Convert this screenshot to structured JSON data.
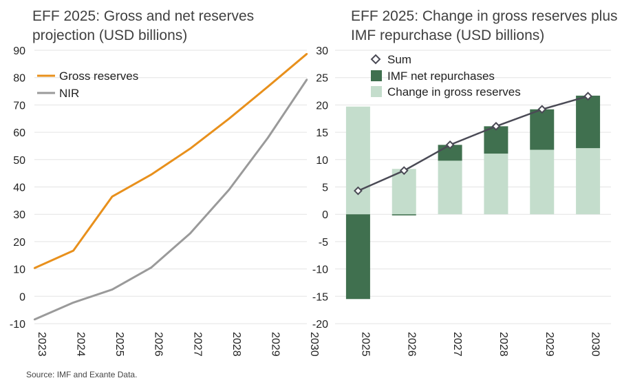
{
  "chart_data": [
    {
      "type": "line",
      "title_lines": [
        "EFF 2025: Gross and net reserves",
        "projection (USD billions)"
      ],
      "x": [
        "2023",
        "2024",
        "2025",
        "2026",
        "2027",
        "2028",
        "2029",
        "2030"
      ],
      "ylim": [
        -10,
        90
      ],
      "yticks": [
        "-10",
        "0",
        "10",
        "20",
        "30",
        "40",
        "50",
        "60",
        "70",
        "80",
        "90"
      ],
      "grid": true,
      "legend_position": "top-left",
      "series": [
        {
          "name": "Gross reserves",
          "color": "#e8901c",
          "values": [
            10.3,
            16.7,
            36.5,
            44.5,
            54.0,
            65.0,
            76.7,
            88.7
          ]
        },
        {
          "name": "NIR",
          "color": "#9a9a9a",
          "values": [
            -8.5,
            -2.3,
            2.5,
            10.5,
            23.0,
            39.0,
            58.0,
            79.3
          ]
        }
      ]
    },
    {
      "type": "bar",
      "stacked": true,
      "title_lines": [
        "EFF 2025: Change in gross reserves plus",
        "IMF repurchase (USD billions)"
      ],
      "categories": [
        "2025",
        "2026",
        "2027",
        "2028",
        "2029",
        "2030"
      ],
      "ylim": [
        -20,
        30
      ],
      "yticks": [
        "-20",
        "-15",
        "-10",
        "-5",
        "0",
        "5",
        "10",
        "15",
        "20",
        "25",
        "30"
      ],
      "grid": true,
      "legend_position": "top-left",
      "series": [
        {
          "name": "Change in gross reserves",
          "color": "#c4ddcc",
          "values": [
            19.7,
            8.3,
            9.8,
            11.1,
            11.8,
            12.1
          ]
        },
        {
          "name": "IMF net repurchases",
          "color": "#40704f",
          "values": [
            -15.5,
            -0.2,
            2.9,
            5.0,
            7.4,
            9.6
          ]
        },
        {
          "name": "Sum",
          "color": "#4a4a55",
          "marker": "diamond",
          "values": [
            4.3,
            8.0,
            12.7,
            16.1,
            19.2,
            21.6
          ]
        }
      ]
    }
  ],
  "source": "Source: IMF and Exante Data."
}
